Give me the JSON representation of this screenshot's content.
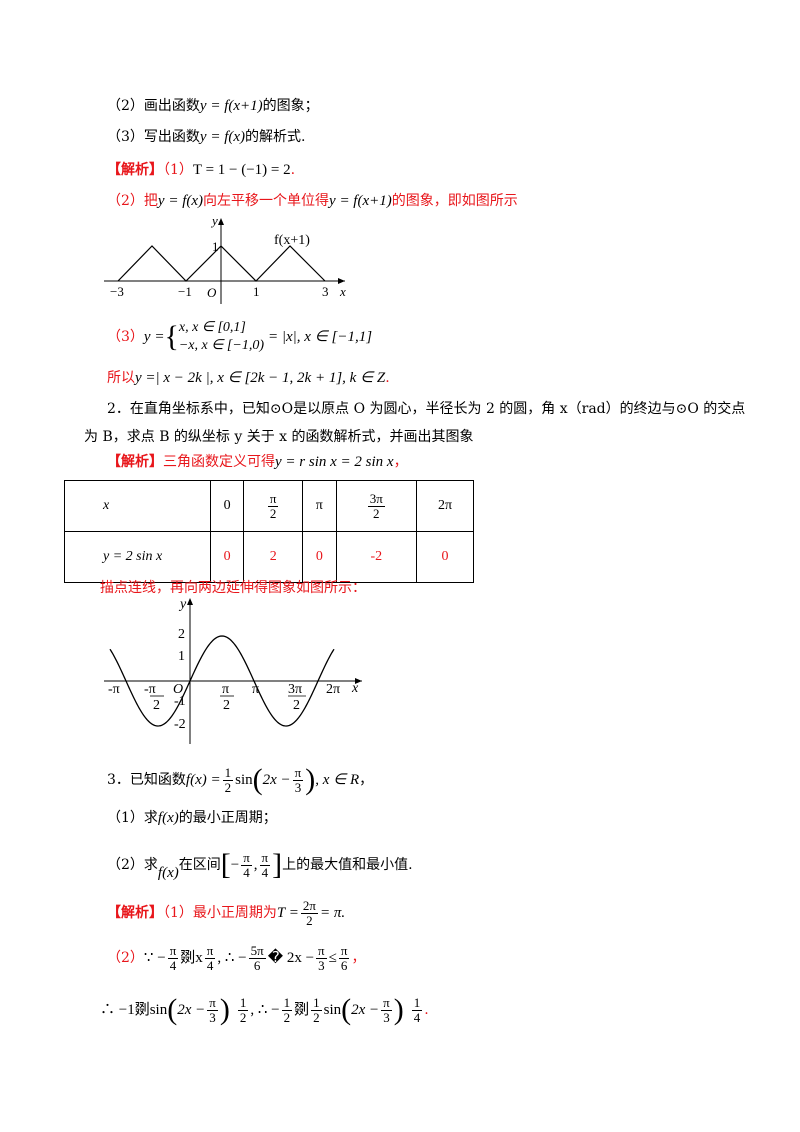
{
  "q1": {
    "part2": "（2）画出函数",
    "part2_formula": "y = f(x+1)",
    "part2_suffix": "的图象；",
    "part3": "（3）写出函数",
    "part3_formula": "y = f(x)",
    "part3_suffix": "的解析式."
  },
  "sol1": {
    "tag": "【解析】",
    "p1": "（1）",
    "p1_formula": "T = 1 − (−1) = 2",
    "p1_end": ".",
    "p2a": "（2）把",
    "p2_f1": "y = f(x)",
    "p2b": "向左平移一个单位得",
    "p2_f2": "y = f(x+1)",
    "p2c": "的图象，即如图所示",
    "p3": "（3）",
    "p3_lhs": "y =",
    "p3_case1": "x, x ∈ [0,1]",
    "p3_case2": "−x, x ∈ [−1,0)",
    "p3_rhs": "= |x|, x ∈ [−1,1]",
    "p4a": "所以",
    "p4_formula": "y =| x − 2k |, x ∈ [2k − 1, 2k + 1], k ∈ Z",
    "p4_end": "."
  },
  "graph1": {
    "y_label": "y",
    "x_label": "x",
    "origin": "O",
    "curve_label": "f(x+1)",
    "ticks": [
      "−3",
      "−1",
      "1",
      "3"
    ],
    "y_tick": "1"
  },
  "q2": {
    "line1": "2．在直角坐标系中，已知⊙O是以原点 O 为圆心，半径长为 2 的圆，角 x（rad）的终边与⊙O 的交点",
    "line2": "为 B，求点 B 的纵坐标 y 关于 x 的函数解析式，并画出其图象"
  },
  "sol2": {
    "tag": "【解析】",
    "text": "三角函数定义可得",
    "formula": "y = r sin x = 2 sin x",
    "end": "，",
    "after_table": "描点连线，再向两边延伸得图象如图所示："
  },
  "table": {
    "row1_header": "x",
    "row1": [
      "0",
      "π/2",
      "π",
      "3π/2",
      "2π"
    ],
    "row2_header": "y = 2 sin x",
    "row2": [
      "0",
      "2",
      "0",
      "-2",
      "0"
    ]
  },
  "graph2": {
    "y_label": "y",
    "x_label": "x",
    "origin": "O",
    "y_ticks": [
      "2",
      "1",
      "-1",
      "-2"
    ],
    "x_ticks": [
      "-π",
      "-π/2",
      "π/2",
      "π",
      "3π/2",
      "2π"
    ]
  },
  "q3": {
    "stem_a": "3．已知函数",
    "stem_f": "f(x) =",
    "stem_b": "sin",
    "stem_arg": "2x −",
    "stem_c": ", x ∈ R",
    "stem_end": "，",
    "p1a": "（1）求",
    "p1_f": "f(x)",
    "p1b": "的最小正周期；",
    "p2a": "（2）求",
    "p2_f": "f(x)",
    "p2b": "在区间",
    "p2c": "上的最大值和最小值."
  },
  "sol3": {
    "tag": "【解析】",
    "p1": "（1）最小正周期为",
    "p1_formula": "T =",
    "p1_end": "= π.",
    "p2": "（2）∵ −",
    "p2_mid1": "剟x",
    "p2_mid2": ", ∴ −",
    "p2_mid3": "� 2x −",
    "p2_mid4": "≤",
    "p2_end": "，",
    "p3a": "∴ −1剟sin",
    "p3b": "1, ∴ −",
    "p3c": "剟",
    "p3d": "sin",
    "p3e": "1",
    "p3_end": "."
  }
}
